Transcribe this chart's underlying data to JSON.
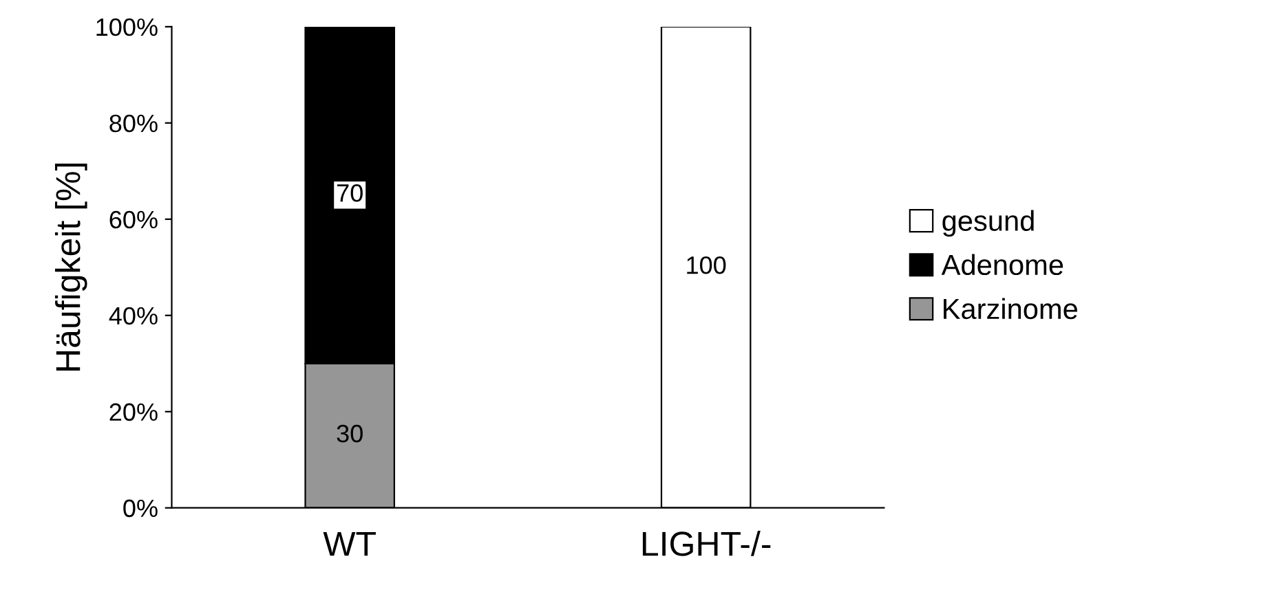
{
  "chart_data": {
    "type": "bar",
    "stacked": true,
    "ylabel": "Häufigkeit [%]",
    "categories": [
      "WT",
      "LIGHT-/-"
    ],
    "series": [
      {
        "name": "Karzinome",
        "color": "#969696",
        "values": [
          30,
          null
        ],
        "value_labels": [
          "30",
          null
        ]
      },
      {
        "name": "Adenome",
        "color": "#000000",
        "values": [
          70,
          null
        ],
        "value_labels": [
          "70",
          null
        ]
      },
      {
        "name": "gesund",
        "color": "#ffffff",
        "values": [
          null,
          100
        ],
        "value_labels": [
          null,
          "100"
        ]
      }
    ],
    "ylim": [
      0,
      100
    ],
    "yticks": [
      {
        "value": 0,
        "label": "0%"
      },
      {
        "value": 20,
        "label": "20%"
      },
      {
        "value": 40,
        "label": "40%"
      },
      {
        "value": 60,
        "label": "60%"
      },
      {
        "value": 80,
        "label": "80%"
      },
      {
        "value": 100,
        "label": "100%"
      }
    ],
    "legend": "right",
    "grid": false
  }
}
